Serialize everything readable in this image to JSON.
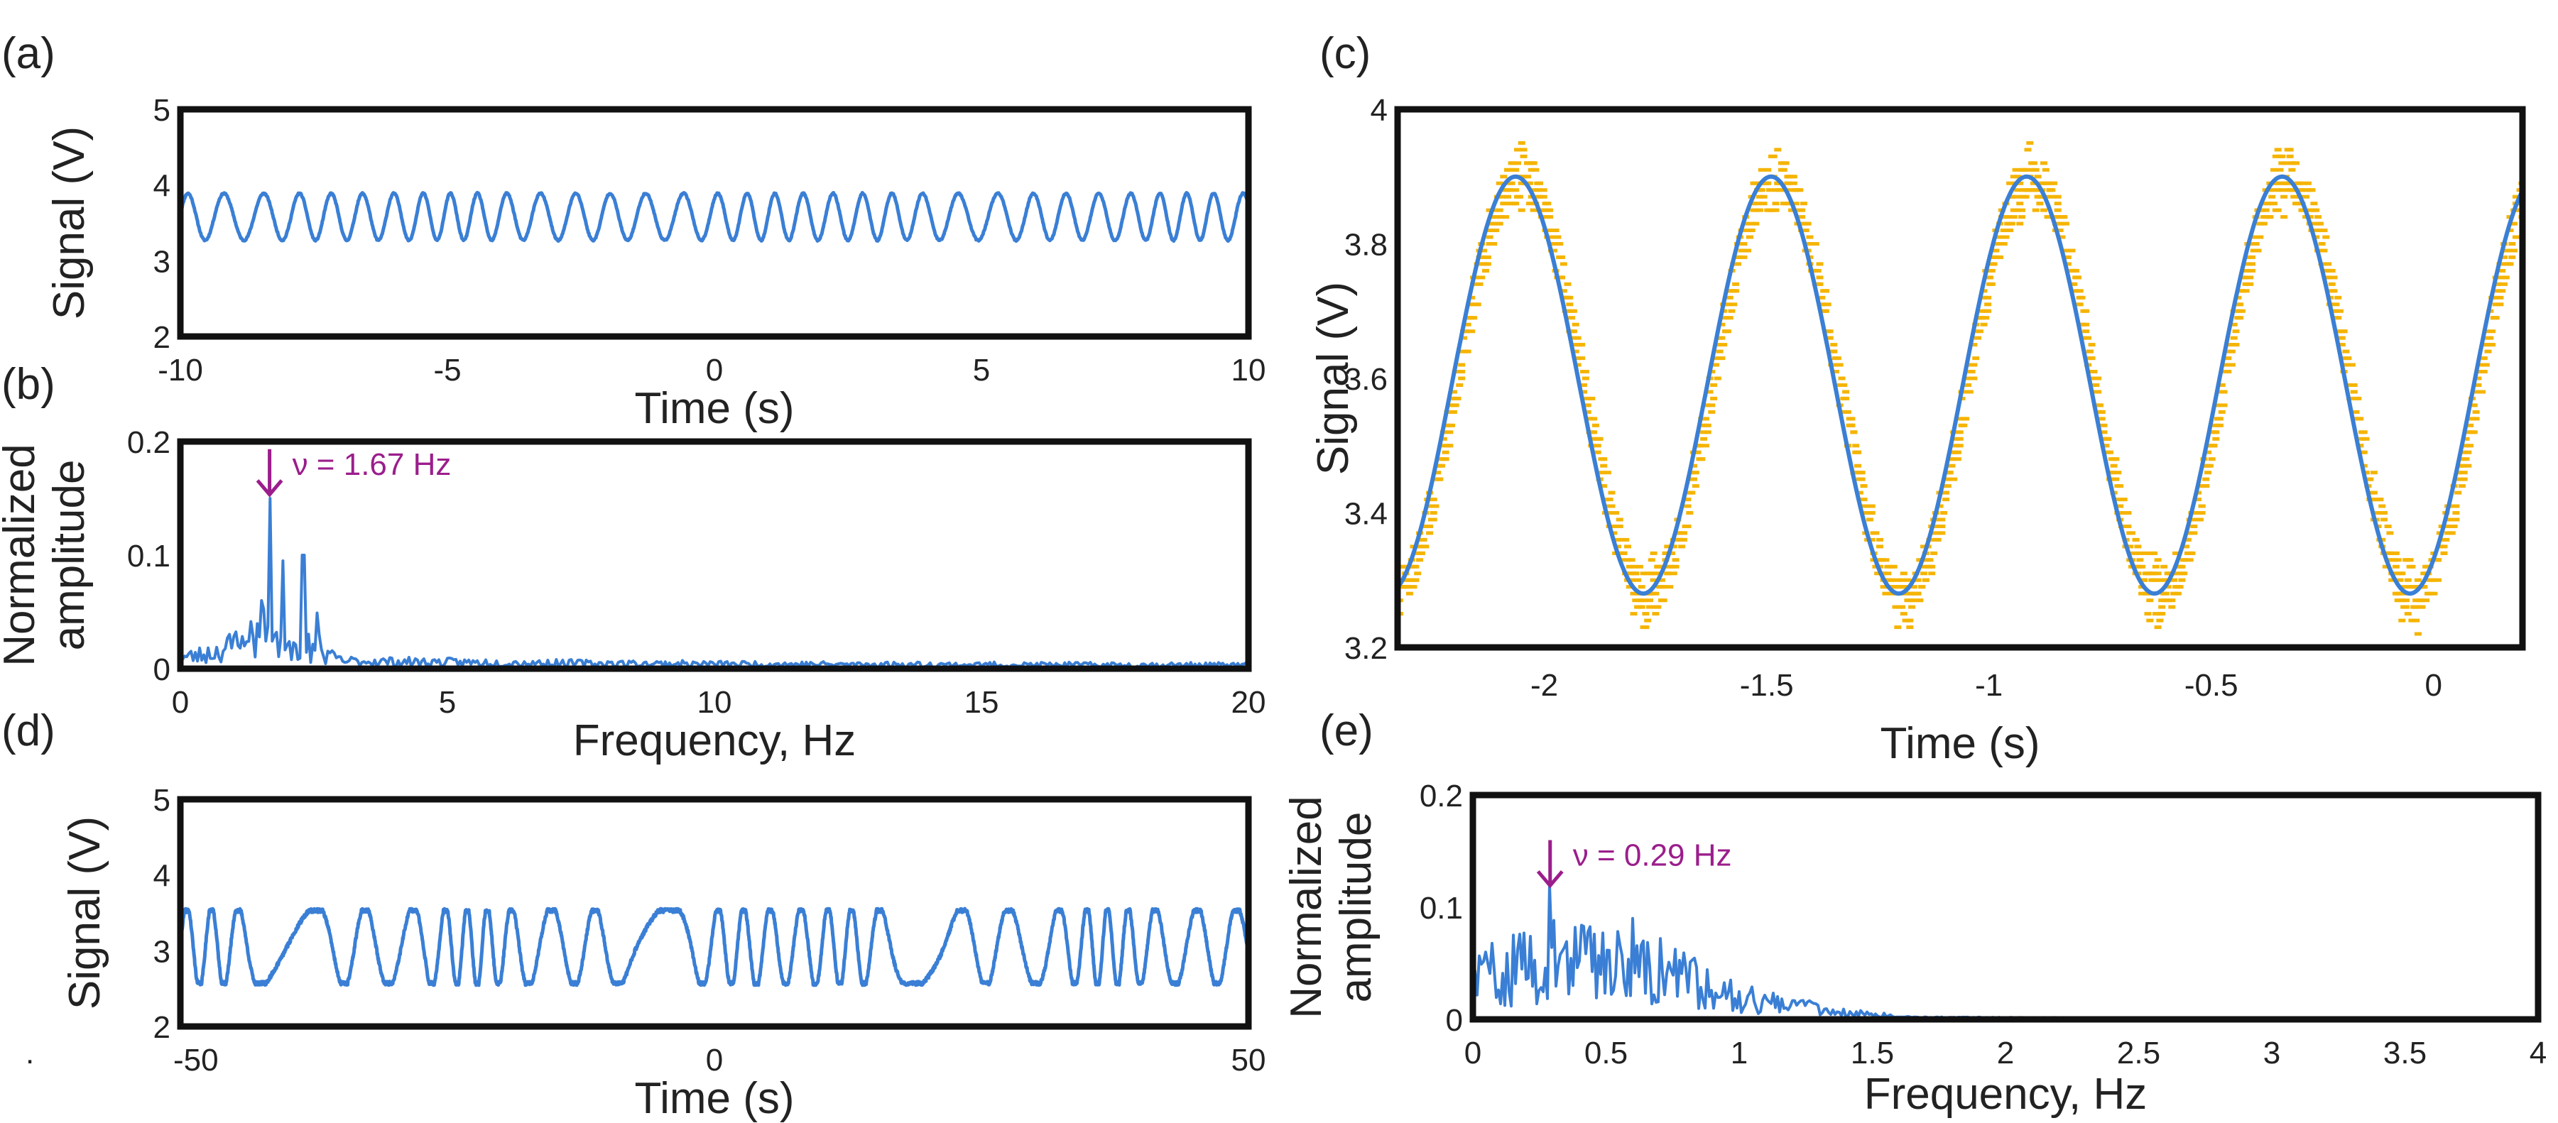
{
  "colors": {
    "line": "#3a7fd5",
    "markers": "#f5b400",
    "annotation": "#9b1e8c",
    "frame": "#111111"
  },
  "panels": {
    "a": {
      "label": "(a)"
    },
    "b": {
      "label": "(b)"
    },
    "c": {
      "label": "(c)"
    },
    "d": {
      "label": "(d)"
    },
    "e": {
      "label": "(e)"
    },
    "stray_mark": "."
  },
  "chart_data": [
    {
      "id": "a",
      "type": "line",
      "title": "",
      "xlabel": "Time (s)",
      "ylabel": "Signal (V)",
      "xlim": [
        -10,
        10
      ],
      "ylim": [
        2,
        5
      ],
      "xticks": [
        -10,
        -5,
        0,
        5,
        10
      ],
      "yticks": [
        2,
        3,
        4,
        5
      ],
      "xtick_labels": [
        "-10",
        "-5",
        "0",
        "5",
        "10"
      ],
      "ytick_labels": [
        "2",
        "3",
        "4",
        "5"
      ],
      "series": [
        {
          "name": "signal",
          "color": "#3a7fd5",
          "offset": 3.58,
          "amplitude": 0.31,
          "frequency_hz": 1.67,
          "approx_min": 3.27,
          "approx_max": 3.89
        }
      ]
    },
    {
      "id": "b",
      "type": "line",
      "title": "",
      "xlabel": "Frequency, Hz",
      "ylabel_lines": [
        "Normalized",
        "amplitude"
      ],
      "xlim": [
        0,
        20
      ],
      "ylim": [
        0,
        0.2
      ],
      "xticks": [
        0,
        5,
        10,
        15,
        20
      ],
      "yticks": [
        0,
        0.1,
        0.2
      ],
      "xtick_labels": [
        "0",
        "5",
        "10",
        "15",
        "20"
      ],
      "ytick_labels": [
        "0",
        "0.1",
        "0.2"
      ],
      "annotation": {
        "text": "ν = 1.67 Hz",
        "x": 1.67
      },
      "series": [
        {
          "name": "spectrum",
          "color": "#3a7fd5",
          "peaks": [
            {
              "x": 1.2,
              "y": 0.02
            },
            {
              "x": 1.5,
              "y": 0.06
            },
            {
              "x": 1.67,
              "y": 0.15
            },
            {
              "x": 1.9,
              "y": 0.095
            },
            {
              "x": 2.3,
              "y": 0.1
            },
            {
              "x": 2.6,
              "y": 0.03
            }
          ]
        }
      ]
    },
    {
      "id": "c",
      "type": "line",
      "title": "",
      "xlabel": "Time (s)",
      "ylabel": "Signal (V)",
      "xlim": [
        -2.33,
        0.2
      ],
      "ylim": [
        3.2,
        4.0
      ],
      "xticks": [
        -2,
        -1.5,
        -1,
        -0.5,
        0
      ],
      "yticks": [
        3.2,
        3.4,
        3.6,
        3.8,
        4.0
      ],
      "xtick_labels": [
        "-2",
        "-1.5",
        "-1",
        "-0.5",
        "0"
      ],
      "ytick_labels": [
        "3.2",
        "3.4",
        "3.6",
        "3.8",
        "4"
      ],
      "series": [
        {
          "name": "fit",
          "type": "line",
          "color": "#3a7fd5",
          "offset": 3.59,
          "amplitude": 0.31,
          "frequency_hz": 1.74,
          "maxima_x": [
            -2.06,
            -1.49,
            -0.92,
            -0.35,
            0.2
          ],
          "minima_x": [
            -1.78,
            -1.21,
            -0.64,
            -0.07
          ]
        },
        {
          "name": "data",
          "type": "scatter",
          "color": "#f5b400",
          "max_y": 3.95,
          "min_y": 3.22
        }
      ]
    },
    {
      "id": "d",
      "type": "line",
      "title": "",
      "xlabel": "Time (s)",
      "ylabel": "Signal (V)",
      "xlim": [
        -50,
        50
      ],
      "ylim": [
        2,
        5
      ],
      "xticks": [
        -50,
        0,
        50
      ],
      "yticks": [
        2,
        3,
        4,
        5
      ],
      "xtick_labels": [
        "-50",
        "0",
        "50"
      ],
      "ytick_labels": [
        "2",
        "3",
        "4",
        "5"
      ],
      "series": [
        {
          "name": "signal",
          "color": "#3a7fd5",
          "approx_min": 2.55,
          "approx_max": 3.55,
          "dominant_frequency_hz": 0.29
        }
      ]
    },
    {
      "id": "e",
      "type": "line",
      "title": "",
      "xlabel": "Frequency, Hz",
      "ylabel_lines": [
        "Normalized",
        "amplitude"
      ],
      "xlim": [
        0,
        4
      ],
      "ylim": [
        0,
        0.2
      ],
      "xticks": [
        0,
        0.5,
        1,
        1.5,
        2,
        2.5,
        3,
        3.5,
        4
      ],
      "yticks": [
        0,
        0.1,
        0.2
      ],
      "xtick_labels": [
        "0",
        "0.5",
        "1",
        "1.5",
        "2",
        "2.5",
        "3",
        "3.5",
        "4"
      ],
      "ytick_labels": [
        "0",
        "0.1",
        "0.2"
      ],
      "annotation": {
        "text": "ν = 0.29 Hz",
        "x": 0.29
      },
      "series": [
        {
          "name": "spectrum",
          "color": "#3a7fd5",
          "peak": {
            "x": 0.29,
            "y": 0.12
          },
          "secondary_peaks": [
            {
              "x": 0.05,
              "y": 0.06
            },
            {
              "x": 0.6,
              "y": 0.09
            }
          ],
          "decay_to_zero_x": 1.6
        }
      ]
    }
  ]
}
